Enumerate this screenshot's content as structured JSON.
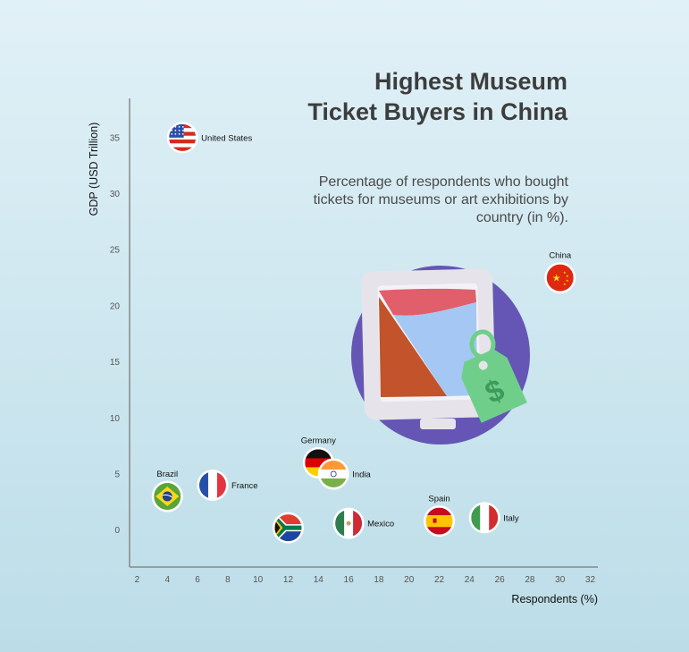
{
  "title": "Highest Museum Ticket Buyers in China",
  "subtitle": "Percentage of respondents who bought tickets for museums or art exhibitions by country (in %).",
  "chart_data": {
    "type": "scatter",
    "title": "Highest Museum Ticket Buyers in China",
    "subtitle": "Percentage of respondents who bought tickets for museums or art exhibitions by country (in %).",
    "xlabel": "Respondents (%)",
    "ylabel": "GDP (USD Trillion)",
    "xlim": [
      1.5,
      32.5
    ],
    "ylim": [
      -3.3,
      38.5
    ],
    "xticks": [
      2,
      4,
      6,
      8,
      10,
      12,
      14,
      16,
      18,
      20,
      22,
      24,
      26,
      28,
      30,
      32
    ],
    "yticks": [
      0,
      5,
      10,
      15,
      20,
      25,
      30,
      35
    ],
    "grid": false,
    "points": [
      {
        "label": "United States",
        "x": 5,
        "y": 35,
        "flag": "us-flag-icon",
        "label_pos": "right"
      },
      {
        "label": "China",
        "x": 30,
        "y": 22.5,
        "flag": "china-flag-icon",
        "label_pos": "top"
      },
      {
        "label": "Germany",
        "x": 14,
        "y": 6,
        "flag": "germany-flag-icon",
        "label_pos": "top"
      },
      {
        "label": "India",
        "x": 15,
        "y": 5,
        "flag": "india-flag-icon",
        "label_pos": "right"
      },
      {
        "label": "Brazil",
        "x": 4,
        "y": 3,
        "flag": "brazil-flag-icon",
        "label_pos": "top"
      },
      {
        "label": "France",
        "x": 7,
        "y": 4,
        "flag": "france-flag-icon",
        "label_pos": "right"
      },
      {
        "label": "",
        "x": 12,
        "y": 0.2,
        "flag": "south-africa-flag-icon",
        "label_pos": "none"
      },
      {
        "label": "Mexico",
        "x": 16,
        "y": 0.6,
        "flag": "mexico-flag-icon",
        "label_pos": "right"
      },
      {
        "label": "Spain",
        "x": 22,
        "y": 0.8,
        "flag": "spain-flag-icon",
        "label_pos": "top"
      },
      {
        "label": "Italy",
        "x": 25,
        "y": 1.1,
        "flag": "italy-flag-icon",
        "label_pos": "right"
      }
    ]
  },
  "colors": {
    "axis": "#888888",
    "illustration_circle": "#6556b5",
    "tablet_frame": "#e6e4ea",
    "chart_orange": "#c2532a",
    "chart_blue": "#a4c8f3",
    "chart_red": "#e05f6b",
    "tag_green": "#6fcf8a"
  }
}
